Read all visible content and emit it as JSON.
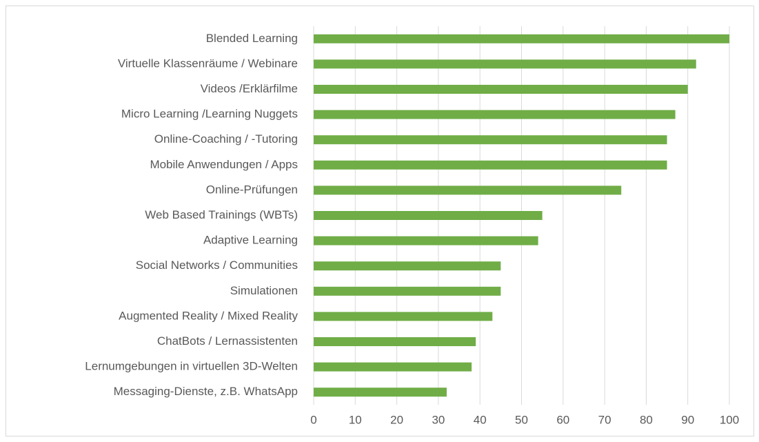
{
  "chart_data": {
    "type": "barh",
    "categories": [
      "Blended Learning",
      "Virtuelle Klassenräume / Webinare",
      "Videos /Erklärfilme",
      "Micro Learning /Learning Nuggets",
      "Online-Coaching / -Tutoring",
      "Mobile Anwendungen / Apps",
      "Online-Prüfungen",
      "Web Based Trainings (WBTs)",
      "Adaptive Learning",
      "Social Networks / Communities",
      "Simulationen",
      "Augmented Reality / Mixed Reality",
      "ChatBots / Lernassistenten",
      "Lernumgebungen in virtuellen 3D-Welten",
      "Messaging-Dienste, z.B. WhatsApp"
    ],
    "values": [
      100,
      92,
      90,
      87,
      85,
      85,
      74,
      55,
      54,
      45,
      45,
      43,
      39,
      38,
      32
    ],
    "color": "#70ad47",
    "xlim": [
      0,
      100
    ],
    "xticks": [
      0,
      10,
      20,
      30,
      40,
      50,
      60,
      70,
      80,
      90,
      100
    ],
    "grid": true
  }
}
